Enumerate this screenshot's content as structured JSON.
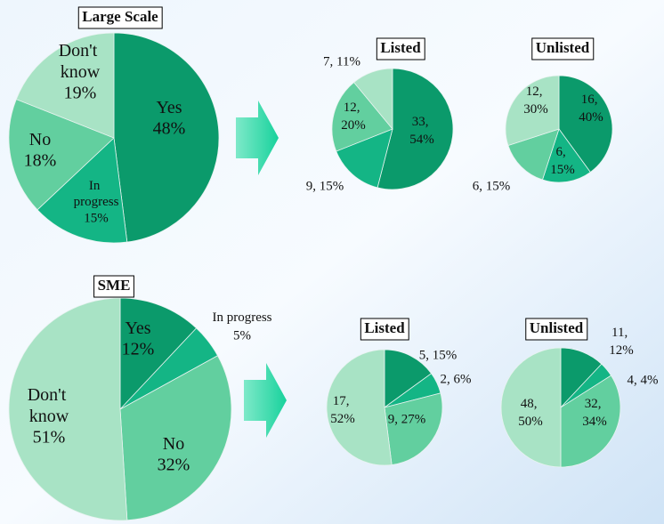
{
  "chart_data": [
    {
      "type": "pie",
      "title": "Large Scale",
      "categories": [
        "Yes",
        "In progress",
        "No",
        "Don't know"
      ],
      "values": [
        48,
        15,
        18,
        19
      ],
      "value_labels": [
        "48%",
        "15%",
        "18%",
        "19%"
      ],
      "colors": [
        "#0b9a6b",
        "#14b585",
        "#62cf9f",
        "#a8e3c5"
      ]
    },
    {
      "type": "pie",
      "title": "Listed",
      "values": [
        54,
        15,
        20,
        11
      ],
      "value_labels": [
        "33, 54%",
        "9, 15%",
        "12, 20%",
        "7, 11%"
      ],
      "colors": [
        "#0b9a6b",
        "#14b585",
        "#62cf9f",
        "#a8e3c5"
      ]
    },
    {
      "type": "pie",
      "title": "Unlisted",
      "values": [
        40,
        15,
        15,
        30
      ],
      "value_labels": [
        "16, 40%",
        "6, 15%",
        "6, 15%",
        "12, 30%"
      ],
      "colors": [
        "#0b9a6b",
        "#14b585",
        "#62cf9f",
        "#a8e3c5"
      ]
    },
    {
      "type": "pie",
      "title": "SME",
      "categories": [
        "Yes",
        "In progress",
        "No",
        "Don't know"
      ],
      "values": [
        12,
        5,
        32,
        51
      ],
      "value_labels": [
        "12%",
        "5%",
        "32%",
        "51%"
      ],
      "colors": [
        "#0b9a6b",
        "#14b585",
        "#62cf9f",
        "#a8e3c5"
      ]
    },
    {
      "type": "pie",
      "title": "Listed",
      "values": [
        15,
        6,
        27,
        52
      ],
      "value_labels": [
        "5, 15%",
        "2, 6%",
        "9, 27%",
        "17, 52%"
      ],
      "colors": [
        "#0b9a6b",
        "#14b585",
        "#62cf9f",
        "#a8e3c5"
      ]
    },
    {
      "type": "pie",
      "title": "Unlisted",
      "values": [
        12,
        4,
        34,
        50
      ],
      "value_labels": [
        "11, 12%",
        "4, 4%",
        "32, 34%",
        "48, 50%"
      ],
      "colors": [
        "#0b9a6b",
        "#14b585",
        "#62cf9f",
        "#a8e3c5"
      ]
    }
  ]
}
